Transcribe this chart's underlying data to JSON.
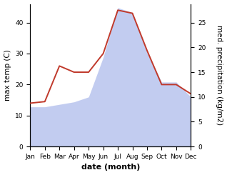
{
  "months": [
    "Jan",
    "Feb",
    "Mar",
    "Apr",
    "May",
    "Jun",
    "Jul",
    "Aug",
    "Sep",
    "Oct",
    "Nov",
    "Dec"
  ],
  "temp": [
    14.0,
    14.5,
    26.0,
    24.0,
    24.0,
    30.0,
    44.0,
    43.0,
    31.0,
    20.0,
    20.0,
    17.0
  ],
  "precip": [
    8.0,
    8.0,
    8.5,
    9.0,
    10.0,
    18.0,
    28.0,
    27.0,
    19.0,
    13.0,
    13.0,
    10.0
  ],
  "temp_color": "#c0392b",
  "precip_fill_color": "#b8c4ee",
  "precip_fill_alpha": 0.85,
  "ylabel_left": "max temp (C)",
  "ylabel_right": "med. precipitation (kg/m2)",
  "xlabel": "date (month)",
  "ylim_left": [
    0,
    46
  ],
  "ylim_right": [
    0,
    28.75
  ],
  "yticks_left": [
    0,
    10,
    20,
    30,
    40
  ],
  "yticks_right": [
    0,
    5,
    10,
    15,
    20,
    25
  ],
  "label_fontsize": 7.5,
  "tick_fontsize": 6.5,
  "xlabel_fontsize": 8,
  "linewidth": 1.4
}
